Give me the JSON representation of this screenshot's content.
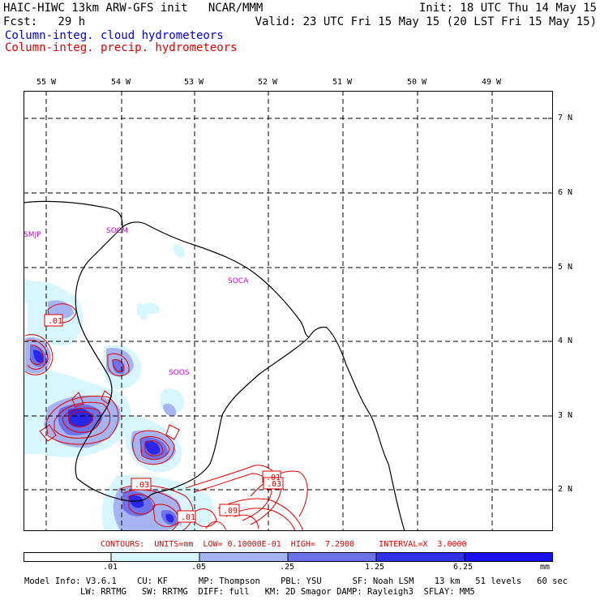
{
  "header": {
    "title": "HAIC-HIWC 13km ARW-GFS init   NCAR/MMM",
    "init": "Init: 18 UTC Thu 14 May 15",
    "fcst": "Fcst:   29 h",
    "valid": "Valid: 23 UTC Fri 15 May 15 (20 LST Fri 15 May 15)",
    "field1": "Column-integ. cloud hydrometeors",
    "field2": "Column-integ. precip. hydrometeors",
    "field1_color": "#0000cc",
    "field2_color": "#dd0000"
  },
  "map": {
    "lon_labels": [
      "55 W",
      "54 W",
      "53 W",
      "52 W",
      "51 W",
      "50 W",
      "49 W"
    ],
    "lat_labels": [
      "7 N",
      "6 N",
      "5 N",
      "4 N",
      "3 N",
      "2 N"
    ],
    "stations": [
      "SMJP",
      "SOCM",
      "SOCA",
      "SOOS"
    ],
    "contour_labels": [
      ".01",
      ".01",
      ".03",
      ".01",
      ".03",
      ".09",
      ".01"
    ]
  },
  "contours_info": "CONTOURS:  UNITS=mm  LOW= 0.10000E-01  HIGH=  7.2900     INTERVAL=X  3.0000",
  "colorbar": {
    "ticks": [
      ".01",
      ".05",
      ".25",
      "1.25",
      "6.25"
    ],
    "units": "mm",
    "colors": [
      "#ffffff",
      "#d8f6fd",
      "#a7b4f2",
      "#6d72ea",
      "#3131e8",
      "#1a10ee"
    ]
  },
  "footer": {
    "line1": "Model Info: V3.6.1    CU: KF      MP: Thompson    PBL: YSU      SF: Noah LSM    13 km   51 levels   60 sec",
    "line2": "LW: RRTMG   SW: RRTMG  DIFF: full   KM: 2D Smagor DAMP: Rayleigh3  SFLAY: MM5"
  }
}
